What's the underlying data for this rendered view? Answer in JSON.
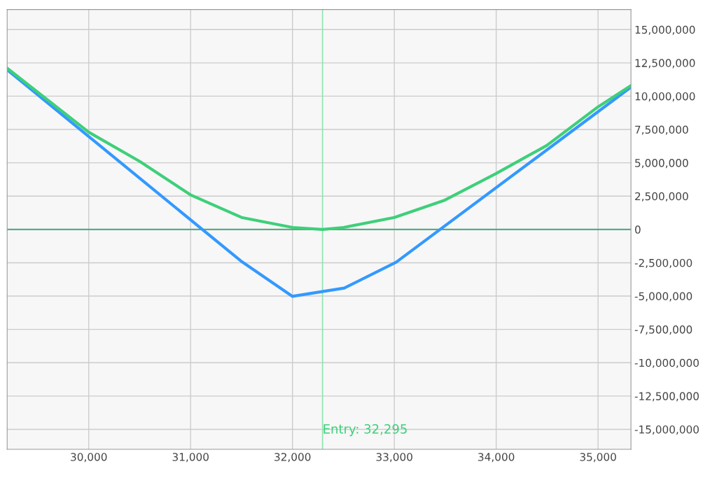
{
  "chart_data": {
    "type": "line",
    "series": [
      {
        "color": "#3399ff",
        "x": [
          29199,
          31494,
          32000,
          32508,
          33018,
          35323
        ],
        "values": [
          11980000,
          -2370000,
          -5020000,
          -4400000,
          -2460000,
          10680000
        ]
      },
      {
        "color": "#3ecf7a",
        "x": [
          29199,
          30000,
          30502,
          30998,
          31500,
          32000,
          32295,
          32502,
          33000,
          33496,
          34000,
          34496,
          35000,
          35323
        ],
        "values": [
          12100000,
          7300000,
          5100000,
          2600000,
          900000,
          150000,
          0,
          150000,
          900000,
          2200000,
          4200000,
          6300000,
          9200000,
          10800000
        ]
      }
    ],
    "xlim": [
      29199,
      35323
    ],
    "xticks": [
      {
        "value": 30000,
        "label": "30,000"
      },
      {
        "value": 31000,
        "label": "31,000"
      },
      {
        "value": 32000,
        "label": "32,000"
      },
      {
        "value": 33000,
        "label": "33,000"
      },
      {
        "value": 34000,
        "label": "34,000"
      },
      {
        "value": 35000,
        "label": "35,000"
      }
    ],
    "ylim": [
      -16500000,
      16500000
    ],
    "yticks": [
      {
        "value": -15000000,
        "label": "-15,000,000"
      },
      {
        "value": -12500000,
        "label": "-12,500,000"
      },
      {
        "value": -10000000,
        "label": "-10,000,000"
      },
      {
        "value": -7500000,
        "label": "-7,500,000"
      },
      {
        "value": -5000000,
        "label": "-5,000,000"
      },
      {
        "value": -2500000,
        "label": "-2,500,000"
      },
      0,
      {
        "value": 2500000,
        "label": "2,500,000"
      },
      {
        "value": 5000000,
        "label": "5,000,000"
      },
      {
        "value": 7500000,
        "label": "7,500,000"
      },
      {
        "value": 10000000,
        "label": "10,000,000"
      },
      {
        "value": 12500000,
        "label": "12,500,000"
      },
      {
        "value": 15000000,
        "label": "15,000,000"
      }
    ],
    "ref_lines": [
      {
        "axis": "x",
        "value": 32295,
        "label": "Entry: 32,295",
        "color": "#8fe3b0"
      },
      {
        "axis": "y",
        "value": 0,
        "color": "#5aab85"
      }
    ],
    "grid": true
  }
}
